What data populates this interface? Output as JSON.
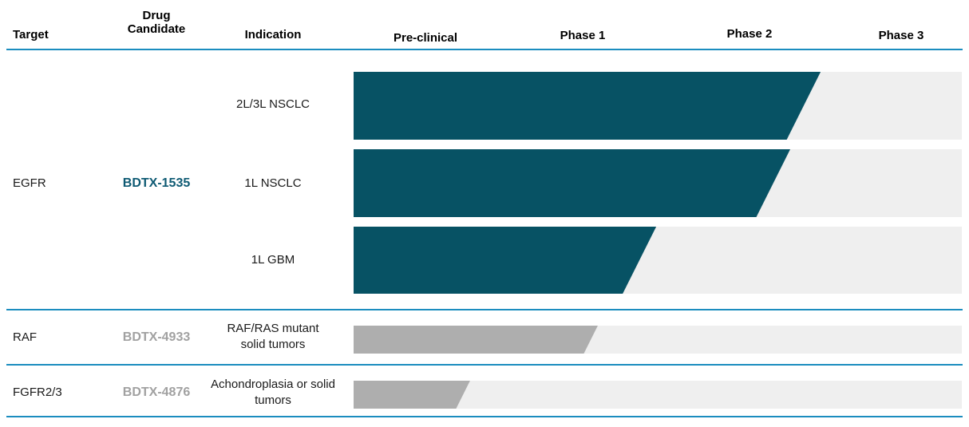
{
  "header": {
    "target": "Target",
    "drug_candidate": "Drug Candidate",
    "indication": "Indication"
  },
  "phases": [
    "Pre-clinical",
    "Phase 1",
    "Phase 2",
    "Phase 3"
  ],
  "colors": {
    "divider_line": "#1b8dbf",
    "bar_clinical": "#075264",
    "bar_preclinical": "#aeaeae",
    "bar_track": "#efefef",
    "candidate_clinical_text": "#0e5a73",
    "candidate_preclinical_text": "#a1a1a1",
    "header_text": "#000000",
    "body_text": "#1a1a1a"
  },
  "chart_data": {
    "type": "bar",
    "x_axis_labels": [
      "Pre-clinical",
      "Phase 1",
      "Phase 2",
      "Phase 3"
    ],
    "track_range": [
      0,
      4
    ],
    "legend": "none",
    "rows": [
      {
        "target": "EGFR",
        "drug_candidate": "BDTX-1535",
        "indication": "2L/3L NSCLC",
        "stage_reached": "Phase 2",
        "progress_of_track": 0.74,
        "bar_color": "#075264"
      },
      {
        "target": "EGFR",
        "drug_candidate": "BDTX-1535",
        "indication": "1L NSCLC",
        "stage_reached": "Phase 2",
        "progress_of_track": 0.69,
        "bar_color": "#075264"
      },
      {
        "target": "EGFR",
        "drug_candidate": "BDTX-1535",
        "indication": "1L GBM",
        "stage_reached": "Phase 1",
        "progress_of_track": 0.47,
        "bar_color": "#075264"
      },
      {
        "target": "RAF",
        "drug_candidate": "BDTX-4933",
        "indication": "RAF/RAS mutant solid tumors",
        "stage_reached": "Phase 1",
        "progress_of_track": 0.39,
        "bar_color": "#aeaeae"
      },
      {
        "target": "FGFR2/3",
        "drug_candidate": "BDTX-4876",
        "indication": "Achondroplasia or solid tumors",
        "stage_reached": "Pre-clinical",
        "progress_of_track": 0.18,
        "bar_color": "#aeaeae"
      }
    ]
  }
}
